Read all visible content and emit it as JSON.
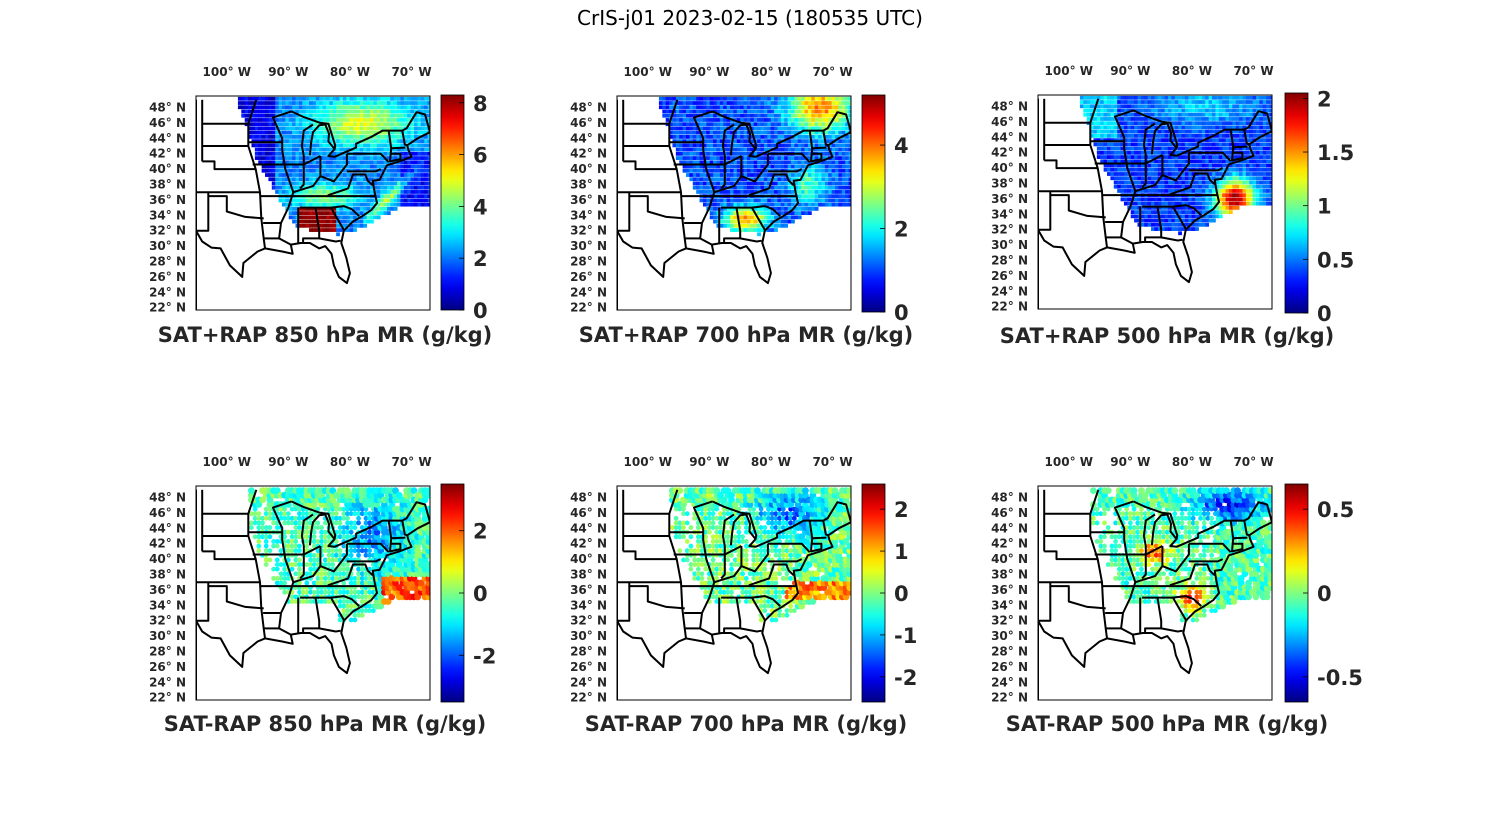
{
  "title": "CrIS-j01 2023-02-15 (180535 UTC)",
  "chart_data": [
    {
      "type": "heatmap",
      "title": "SAT+RAP 850 hPa MR (g/kg)",
      "xticks": [
        "100° W",
        "90° W",
        "80° W",
        "70° W"
      ],
      "yticks": [
        "48° N",
        "46° N",
        "44° N",
        "42° N",
        "40° N",
        "38° N",
        "36° N",
        "34° N",
        "32° N",
        "30° N",
        "28° N",
        "26° N",
        "24° N",
        "22° N"
      ],
      "colorbar": {
        "ticks": [
          "0",
          "2",
          "4",
          "6",
          "8"
        ],
        "values": [
          0,
          2,
          4,
          6,
          8
        ],
        "range": [
          0,
          8.3
        ],
        "colormap": "jet"
      },
      "field": "swath",
      "dominant_values": "blue/cyan north-west, yellow Great Lakes region, dark red over Alabama/Georgia"
    },
    {
      "type": "heatmap",
      "title": "SAT+RAP 700 hPa MR (g/kg)",
      "xticks": [
        "100° W",
        "90° W",
        "80° W",
        "70° W"
      ],
      "yticks": [
        "48° N",
        "46° N",
        "44° N",
        "42° N",
        "40° N",
        "38° N",
        "36° N",
        "34° N",
        "32° N",
        "30° N",
        "28° N",
        "26° N",
        "24° N",
        "22° N"
      ],
      "colorbar": {
        "ticks": [
          "0",
          "2",
          "4"
        ],
        "values": [
          0,
          2,
          4
        ],
        "range": [
          0,
          5.2
        ],
        "colormap": "jet"
      },
      "field": "swath"
    },
    {
      "type": "heatmap",
      "title": "SAT+RAP 500 hPa MR (g/kg)",
      "xticks": [
        "100° W",
        "90° W",
        "80° W",
        "70° W"
      ],
      "yticks": [
        "48° N",
        "46° N",
        "44° N",
        "42° N",
        "40° N",
        "38° N",
        "36° N",
        "34° N",
        "32° N",
        "30° N",
        "28° N",
        "26° N",
        "24° N",
        "22° N"
      ],
      "colorbar": {
        "ticks": [
          "0",
          "0.5",
          "1",
          "1.5",
          "2"
        ],
        "values": [
          0,
          0.5,
          1,
          1.5,
          2
        ],
        "range": [
          0,
          2.05
        ],
        "colormap": "jet"
      },
      "field": "swath"
    },
    {
      "type": "heatmap",
      "title": "SAT-RAP 850 hPa MR (g/kg)",
      "xticks": [
        "100° W",
        "90° W",
        "80° W",
        "70° W"
      ],
      "yticks": [
        "48° N",
        "46° N",
        "44° N",
        "42° N",
        "40° N",
        "38° N",
        "36° N",
        "34° N",
        "32° N",
        "30° N",
        "28° N",
        "26° N",
        "24° N",
        "22° N"
      ],
      "colorbar": {
        "ticks": [
          "-2",
          "0",
          "2"
        ],
        "values": [
          -2,
          0,
          2
        ],
        "range": [
          -3.5,
          3.5
        ],
        "colormap": "jet"
      },
      "field": "difference"
    },
    {
      "type": "heatmap",
      "title": "SAT-RAP 700 hPa MR (g/kg)",
      "xticks": [
        "100° W",
        "90° W",
        "80° W",
        "70° W"
      ],
      "yticks": [
        "48° N",
        "46° N",
        "44° N",
        "42° N",
        "40° N",
        "38° N",
        "36° N",
        "34° N",
        "32° N",
        "30° N",
        "28° N",
        "26° N",
        "24° N",
        "22° N"
      ],
      "colorbar": {
        "ticks": [
          "-2",
          "-1",
          "0",
          "1",
          "2"
        ],
        "values": [
          -2,
          -1,
          0,
          1,
          2
        ],
        "range": [
          -2.6,
          2.6
        ],
        "colormap": "jet"
      },
      "field": "difference"
    },
    {
      "type": "heatmap",
      "title": "SAT-RAP 500 hPa MR (g/kg)",
      "xticks": [
        "100° W",
        "90° W",
        "80° W",
        "70° W"
      ],
      "yticks": [
        "48° N",
        "46° N",
        "44° N",
        "42° N",
        "40° N",
        "38° N",
        "36° N",
        "34° N",
        "32° N",
        "30° N",
        "28° N",
        "26° N",
        "24° N",
        "22° N"
      ],
      "colorbar": {
        "ticks": [
          "-0.5",
          "0",
          "0.5"
        ],
        "values": [
          -0.5,
          0,
          0.5
        ],
        "range": [
          -0.65,
          0.65
        ],
        "colormap": "jet"
      },
      "field": "difference"
    }
  ]
}
